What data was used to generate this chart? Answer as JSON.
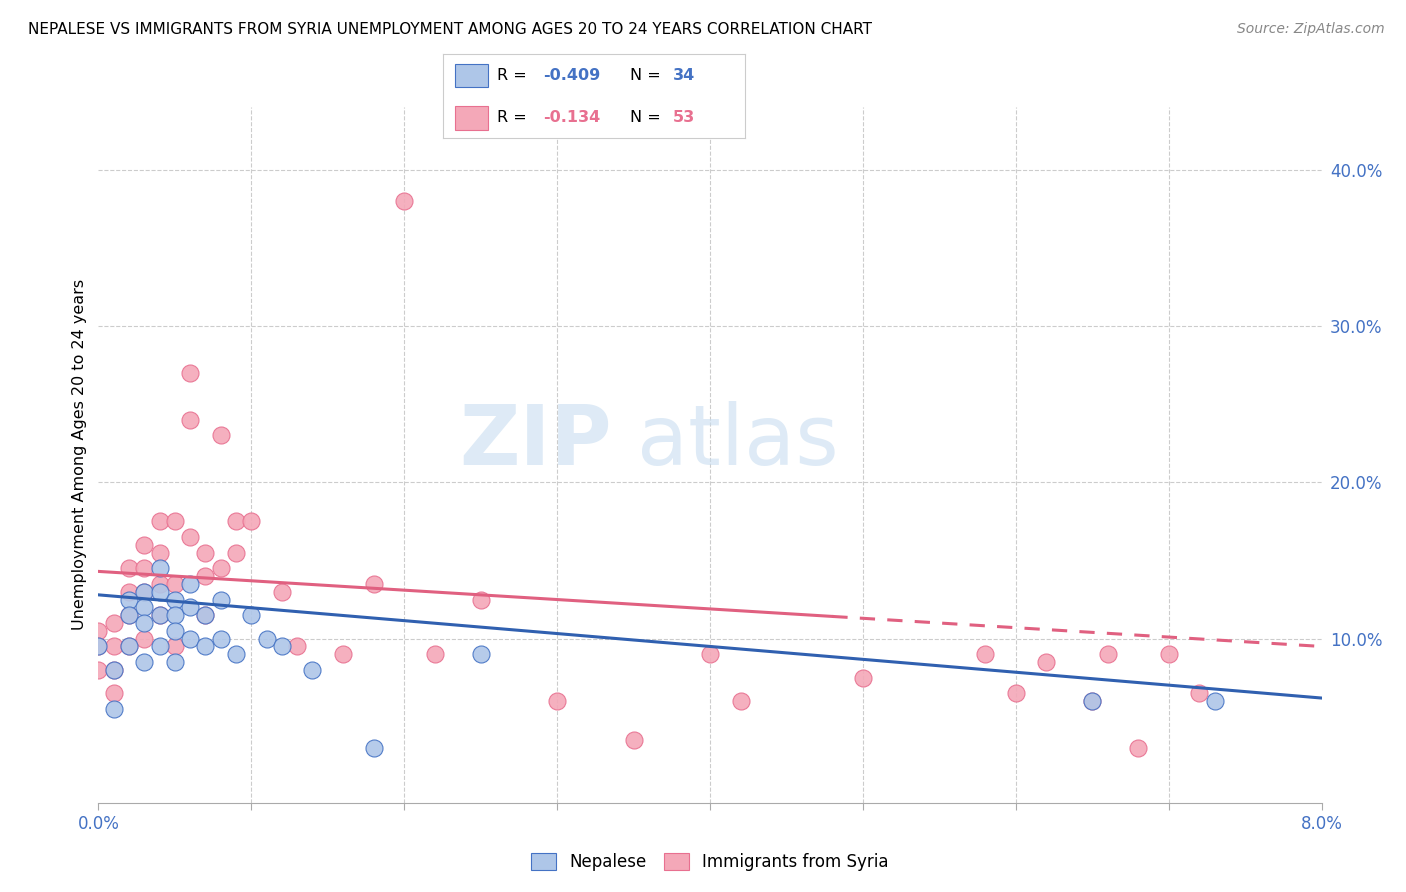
{
  "title": "NEPALESE VS IMMIGRANTS FROM SYRIA UNEMPLOYMENT AMONG AGES 20 TO 24 YEARS CORRELATION CHART",
  "source": "Source: ZipAtlas.com",
  "ylabel": "Unemployment Among Ages 20 to 24 years",
  "xlim": [
    0.0,
    0.08
  ],
  "ylim": [
    -0.005,
    0.44
  ],
  "right_yticks": [
    0.1,
    0.2,
    0.3,
    0.4
  ],
  "right_yticklabels": [
    "10.0%",
    "20.0%",
    "30.0%",
    "40.0%"
  ],
  "nepalese_color": "#aec6e8",
  "syria_color": "#f4a8b8",
  "nepalese_edge_color": "#4472c4",
  "syria_edge_color": "#e87090",
  "nepalese_line_color": "#3060b0",
  "syria_line_color": "#e06080",
  "watermark_zip": "ZIP",
  "watermark_atlas": "atlas",
  "nepalese_x": [
    0.0,
    0.001,
    0.001,
    0.002,
    0.002,
    0.002,
    0.003,
    0.003,
    0.003,
    0.003,
    0.004,
    0.004,
    0.004,
    0.004,
    0.005,
    0.005,
    0.005,
    0.005,
    0.006,
    0.006,
    0.006,
    0.007,
    0.007,
    0.008,
    0.008,
    0.009,
    0.01,
    0.011,
    0.012,
    0.014,
    0.018,
    0.025,
    0.065,
    0.073
  ],
  "nepalese_y": [
    0.095,
    0.08,
    0.055,
    0.125,
    0.115,
    0.095,
    0.13,
    0.12,
    0.11,
    0.085,
    0.145,
    0.13,
    0.115,
    0.095,
    0.125,
    0.115,
    0.105,
    0.085,
    0.135,
    0.12,
    0.1,
    0.115,
    0.095,
    0.125,
    0.1,
    0.09,
    0.115,
    0.1,
    0.095,
    0.08,
    0.03,
    0.09,
    0.06,
    0.06
  ],
  "syria_x": [
    0.0,
    0.0,
    0.0,
    0.001,
    0.001,
    0.001,
    0.001,
    0.002,
    0.002,
    0.002,
    0.002,
    0.003,
    0.003,
    0.003,
    0.003,
    0.004,
    0.004,
    0.004,
    0.004,
    0.005,
    0.005,
    0.005,
    0.006,
    0.006,
    0.006,
    0.007,
    0.007,
    0.007,
    0.008,
    0.008,
    0.009,
    0.009,
    0.01,
    0.012,
    0.013,
    0.016,
    0.018,
    0.02,
    0.022,
    0.025,
    0.03,
    0.035,
    0.04,
    0.042,
    0.05,
    0.058,
    0.06,
    0.062,
    0.065,
    0.066,
    0.068,
    0.07,
    0.072
  ],
  "syria_y": [
    0.105,
    0.095,
    0.08,
    0.11,
    0.095,
    0.08,
    0.065,
    0.145,
    0.13,
    0.115,
    0.095,
    0.16,
    0.145,
    0.13,
    0.1,
    0.175,
    0.155,
    0.135,
    0.115,
    0.175,
    0.135,
    0.095,
    0.27,
    0.24,
    0.165,
    0.155,
    0.14,
    0.115,
    0.23,
    0.145,
    0.155,
    0.175,
    0.175,
    0.13,
    0.095,
    0.09,
    0.135,
    0.38,
    0.09,
    0.125,
    0.06,
    0.035,
    0.09,
    0.06,
    0.075,
    0.09,
    0.065,
    0.085,
    0.06,
    0.09,
    0.03,
    0.09,
    0.065
  ],
  "trend_nep_x0": 0.0,
  "trend_nep_x1": 0.08,
  "trend_nep_y0": 0.128,
  "trend_nep_y1": 0.062,
  "trend_syr_x0": 0.0,
  "trend_syr_x1": 0.08,
  "trend_syr_y0": 0.143,
  "trend_syr_y1": 0.095,
  "trend_syr_dash_start": 0.048
}
